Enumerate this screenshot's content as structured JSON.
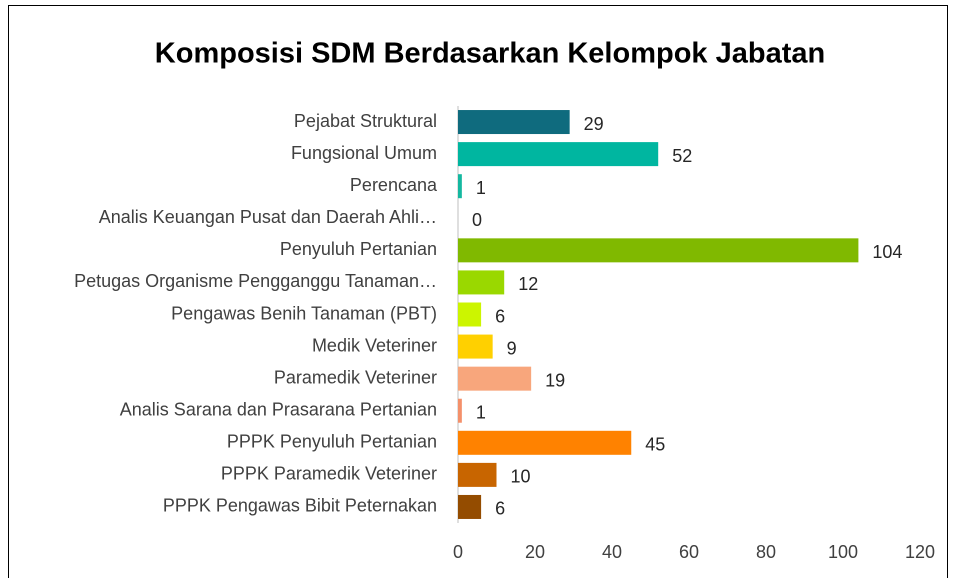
{
  "chart_data": {
    "type": "hbar",
    "title": "Komposisi SDM Berdasarkan Kelompok Jabatan",
    "categories": [
      "Pejabat Struktural",
      "Fungsional Umum",
      "Perencana",
      "Analis Keuangan Pusat dan Daerah Ahli…",
      "Penyuluh Pertanian",
      "Petugas Organisme Pengganggu Tanaman…",
      "Pengawas Benih Tanaman (PBT)",
      "Medik Veteriner",
      "Paramedik Veteriner",
      "Analis Sarana dan Prasarana Pertanian",
      "PPPK Penyuluh Pertanian",
      "PPPK Paramedik Veteriner",
      "PPPK Pengawas Bibit Peternakan"
    ],
    "values": [
      29,
      52,
      1,
      0,
      104,
      12,
      6,
      9,
      19,
      1,
      45,
      10,
      6
    ],
    "colors": [
      "#0f6b7e",
      "#00b6a0",
      "#14b8a0",
      "#14b8a0",
      "#80b900",
      "#9ad800",
      "#ccf500",
      "#ffd000",
      "#f8a67c",
      "#f4906a",
      "#ff8200",
      "#c86500",
      "#944c00"
    ],
    "xlim": [
      0,
      120
    ],
    "xticks": [
      0,
      20,
      40,
      60,
      80,
      100,
      120
    ],
    "grid": false
  }
}
